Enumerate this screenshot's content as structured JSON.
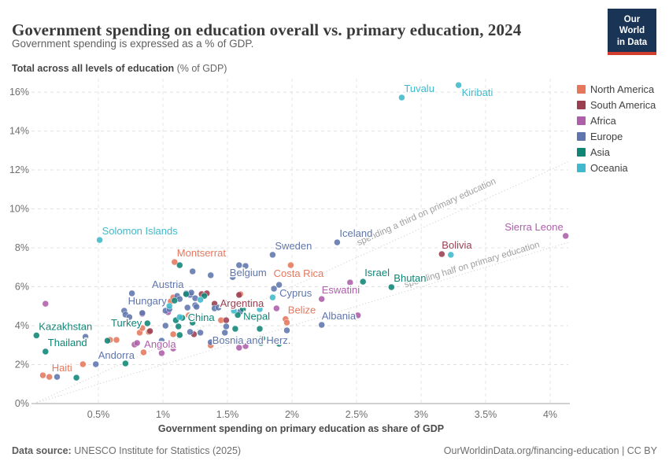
{
  "header": {
    "title": "Government spending on education overall vs. primary education, 2024",
    "subtitle": "Government spending is expressed as a % of GDP.",
    "logo_line1": "Our World",
    "logo_line2": "in Data"
  },
  "footer": {
    "source_label": "Data source:",
    "source_text": " UNESCO Institute for Statistics (2025)",
    "right_text": "OurWorldinData.org/financing-education | CC BY"
  },
  "chart_data": {
    "type": "scatter",
    "title": "Government spending on education overall vs. primary education, 2024",
    "y_axis_title_bold": "Total across all levels of education",
    "y_axis_title_unit": " (% of GDP)",
    "x_axis_title": "Government spending on primary education as share of GDP",
    "xlim": [
      0,
      4.14
    ],
    "ylim": [
      0,
      16.69
    ],
    "grid": true,
    "legend_position": "top-right-outside",
    "x_ticks": [
      {
        "v": 0.5,
        "label": "0.5%"
      },
      {
        "v": 1,
        "label": "1%"
      },
      {
        "v": 1.5,
        "label": "1.5%"
      },
      {
        "v": 2,
        "label": "2%"
      },
      {
        "v": 2.5,
        "label": "2.5%"
      },
      {
        "v": 3,
        "label": "3%"
      },
      {
        "v": 3.5,
        "label": "3.5%"
      },
      {
        "v": 4,
        "label": "4%"
      }
    ],
    "y_ticks": [
      {
        "v": 0,
        "label": "0%"
      },
      {
        "v": 2,
        "label": "2%"
      },
      {
        "v": 4,
        "label": "4%"
      },
      {
        "v": 6,
        "label": "6%"
      },
      {
        "v": 8,
        "label": "8%"
      },
      {
        "v": 10,
        "label": "10%"
      },
      {
        "v": 12,
        "label": "12%"
      },
      {
        "v": 14,
        "label": "14%"
      },
      {
        "v": 16,
        "label": "16%"
      }
    ],
    "reference_lines": [
      {
        "slope": 3,
        "label": "spending a third on primary education",
        "label_x": 3.05,
        "label_dy": -14
      },
      {
        "slope": 2,
        "label": "spending half on primary education",
        "label_x": 3.4,
        "label_dy": -5
      }
    ],
    "series": [
      {
        "name": "North America",
        "color": "#e6775c",
        "points": [
          {
            "x": 1.09,
            "y": 7.27,
            "label": "Montserrat",
            "lp": "above-right"
          },
          {
            "x": 1.99,
            "y": 7.11,
            "label": "Costa Rica",
            "lp": "below",
            "ldx": 10
          },
          {
            "x": 1.95,
            "y": 4.34,
            "label": "Belize",
            "lp": "above-right"
          },
          {
            "x": 0.12,
            "y": 1.37,
            "label": "Haiti",
            "lp": "above-right"
          },
          [
            0.07,
            1.45
          ],
          [
            0.38,
            2.02
          ],
          [
            0.59,
            3.27
          ],
          [
            0.64,
            3.27
          ],
          [
            0.82,
            3.64
          ],
          [
            0.84,
            3.88
          ],
          [
            0.85,
            2.63
          ],
          [
            0.89,
            3.68
          ],
          [
            1.06,
            5.25
          ],
          [
            1.08,
            3.56
          ],
          [
            1.08,
            5.45
          ],
          [
            1.2,
            4.53
          ],
          [
            1.37,
            2.99
          ],
          [
            1.45,
            4.28
          ],
          [
            1.49,
            5.17
          ],
          [
            1.6,
            5.62
          ],
          [
            1.96,
            4.16
          ]
        ]
      },
      {
        "name": "South America",
        "color": "#9a3e50",
        "points": [
          {
            "x": 3.16,
            "y": 7.68,
            "label": "Bolivia",
            "lp": "above-right",
            "ldx": -3
          },
          {
            "x": 1.4,
            "y": 5.13,
            "label": "Argentina",
            "lp": "right"
          },
          [
            0.9,
            3.72
          ],
          [
            1.24,
            3.56
          ],
          [
            1.3,
            5.62
          ],
          [
            1.34,
            5.66
          ],
          [
            1.49,
            4.28
          ],
          [
            1.59,
            5.58
          ]
        ]
      },
      {
        "name": "Africa",
        "color": "#ad5fa9",
        "points": [
          {
            "x": 4.12,
            "y": 8.61,
            "label": "Sierra Leone",
            "lp": "above-left"
          },
          {
            "x": 2.23,
            "y": 5.37,
            "label": "Eswatini",
            "lp": "above-right",
            "ldx": -3
          },
          {
            "x": 0.99,
            "y": 2.59,
            "label": "Angola",
            "lp": "above",
            "ldx": -2
          },
          [
            0.09,
            5.13
          ],
          [
            0.78,
            3.03
          ],
          [
            0.8,
            3.11
          ],
          [
            0.84,
            4.61
          ],
          [
            1.04,
            4.69
          ],
          [
            1.08,
            2.83
          ],
          [
            1.59,
            2.87
          ],
          [
            1.64,
            2.95
          ],
          [
            1.88,
            4.89
          ],
          [
            2.45,
            6.22
          ],
          [
            2.51,
            4.53
          ]
        ]
      },
      {
        "name": "Europe",
        "color": "#5f75ad",
        "points": [
          {
            "x": 2.35,
            "y": 8.28,
            "label": "Iceland",
            "lp": "above-right"
          },
          {
            "x": 1.85,
            "y": 7.64,
            "label": "Sweden",
            "lp": "above-right"
          },
          {
            "x": 1.59,
            "y": 7.11,
            "label": "Belgium",
            "lp": "below-right",
            "ldx": -16
          },
          {
            "x": 1.18,
            "y": 5.66,
            "label": "Austria",
            "lp": "above-left"
          },
          {
            "x": 0.76,
            "y": 5.66,
            "label": "Hungary",
            "lp": "below-right",
            "ldx": -9
          },
          {
            "x": 1.86,
            "y": 5.9,
            "label": "Cyprus",
            "lp": "right",
            "ldy": 6
          },
          {
            "x": 2.23,
            "y": 4.04,
            "label": "Albania",
            "lp": "above-right",
            "ldx": -3
          },
          {
            "x": 1.48,
            "y": 3.64,
            "label": "Bosnia and Herz.",
            "lp": "below-right",
            "ldx": -20
          },
          {
            "x": 0.48,
            "y": 2.02,
            "label": "Andorra",
            "lp": "above-right"
          },
          [
            0.18,
            1.37
          ],
          [
            0.4,
            3.43
          ],
          [
            0.7,
            4.77
          ],
          [
            0.71,
            4.57
          ],
          [
            0.74,
            4.44
          ],
          [
            0.84,
            4.65
          ],
          [
            0.99,
            3.23
          ],
          [
            1.02,
            4.0
          ],
          [
            1.02,
            4.77
          ],
          [
            1.05,
            4.85
          ],
          [
            1.11,
            5.53
          ],
          [
            1.13,
            5.37
          ],
          [
            1.19,
            4.93
          ],
          [
            1.21,
            5.58
          ],
          [
            1.21,
            3.68
          ],
          [
            1.22,
            5.7
          ],
          [
            1.23,
            6.79
          ],
          [
            1.25,
            5.41
          ],
          [
            1.25,
            5.05
          ],
          [
            1.26,
            4.97
          ],
          [
            1.26,
            4.4
          ],
          [
            1.29,
            3.64
          ],
          [
            1.37,
            6.59
          ],
          [
            1.37,
            3.15
          ],
          [
            1.4,
            4.89
          ],
          [
            1.43,
            4.93
          ],
          [
            1.49,
            3.96
          ],
          [
            1.54,
            6.5
          ],
          [
            1.6,
            4.73
          ],
          [
            1.64,
            7.07
          ],
          [
            1.65,
            4.44
          ],
          [
            1.9,
            6.1
          ],
          [
            1.96,
            3.76
          ]
        ]
      },
      {
        "name": "Asia",
        "color": "#0f8576",
        "points": [
          {
            "x": 2.55,
            "y": 6.26,
            "label": "Israel",
            "lp": "above-right",
            "ldx": -1
          },
          {
            "x": 2.77,
            "y": 5.98,
            "label": "Bhutan",
            "lp": "above-right"
          },
          {
            "x": 1.15,
            "y": 4.4,
            "label": "China",
            "lp": "right"
          },
          {
            "x": 1.58,
            "y": 4.55,
            "label": "Nepal",
            "lp": "right",
            "ldy": 2
          },
          {
            "x": 0.88,
            "y": 4.12,
            "label": "Turkey",
            "lp": "left"
          },
          {
            "x": 0.02,
            "y": 3.5,
            "label": "Kazakhstan",
            "lp": "above-right"
          },
          {
            "x": 0.09,
            "y": 2.67,
            "label": "Thailand",
            "lp": "above-right"
          },
          [
            0.33,
            1.33
          ],
          [
            0.57,
            3.23
          ],
          [
            0.71,
            2.06
          ],
          [
            0.98,
            2.91
          ],
          [
            1.09,
            5.29
          ],
          [
            1.1,
            4.28
          ],
          [
            1.12,
            3.96
          ],
          [
            1.13,
            7.11
          ],
          [
            1.13,
            3.52
          ],
          [
            1.18,
            5.62
          ],
          [
            1.23,
            4.16
          ],
          [
            1.32,
            5.53
          ],
          [
            1.56,
            3.84
          ],
          [
            1.62,
            4.85
          ],
          [
            1.75,
            3.84
          ],
          [
            1.76,
            3.11
          ],
          [
            1.77,
            3.35
          ],
          [
            1.9,
            3.07
          ]
        ]
      },
      {
        "name": "Oceania",
        "color": "#3fb9cb",
        "points": [
          {
            "x": 3.29,
            "y": 16.36,
            "label": "Kiribati",
            "lp": "below-right"
          },
          {
            "x": 2.85,
            "y": 15.72,
            "label": "Tuvalu",
            "lp": "above-right"
          },
          {
            "x": 0.51,
            "y": 8.4,
            "label": "Solomon Islands",
            "lp": "above-right"
          },
          [
            1.05,
            5.01
          ],
          [
            1.13,
            4.44
          ],
          [
            1.29,
            5.33
          ],
          [
            1.55,
            4.77
          ],
          [
            1.75,
            4.85
          ],
          [
            1.85,
            5.45
          ],
          [
            3.23,
            7.64
          ]
        ]
      }
    ]
  }
}
